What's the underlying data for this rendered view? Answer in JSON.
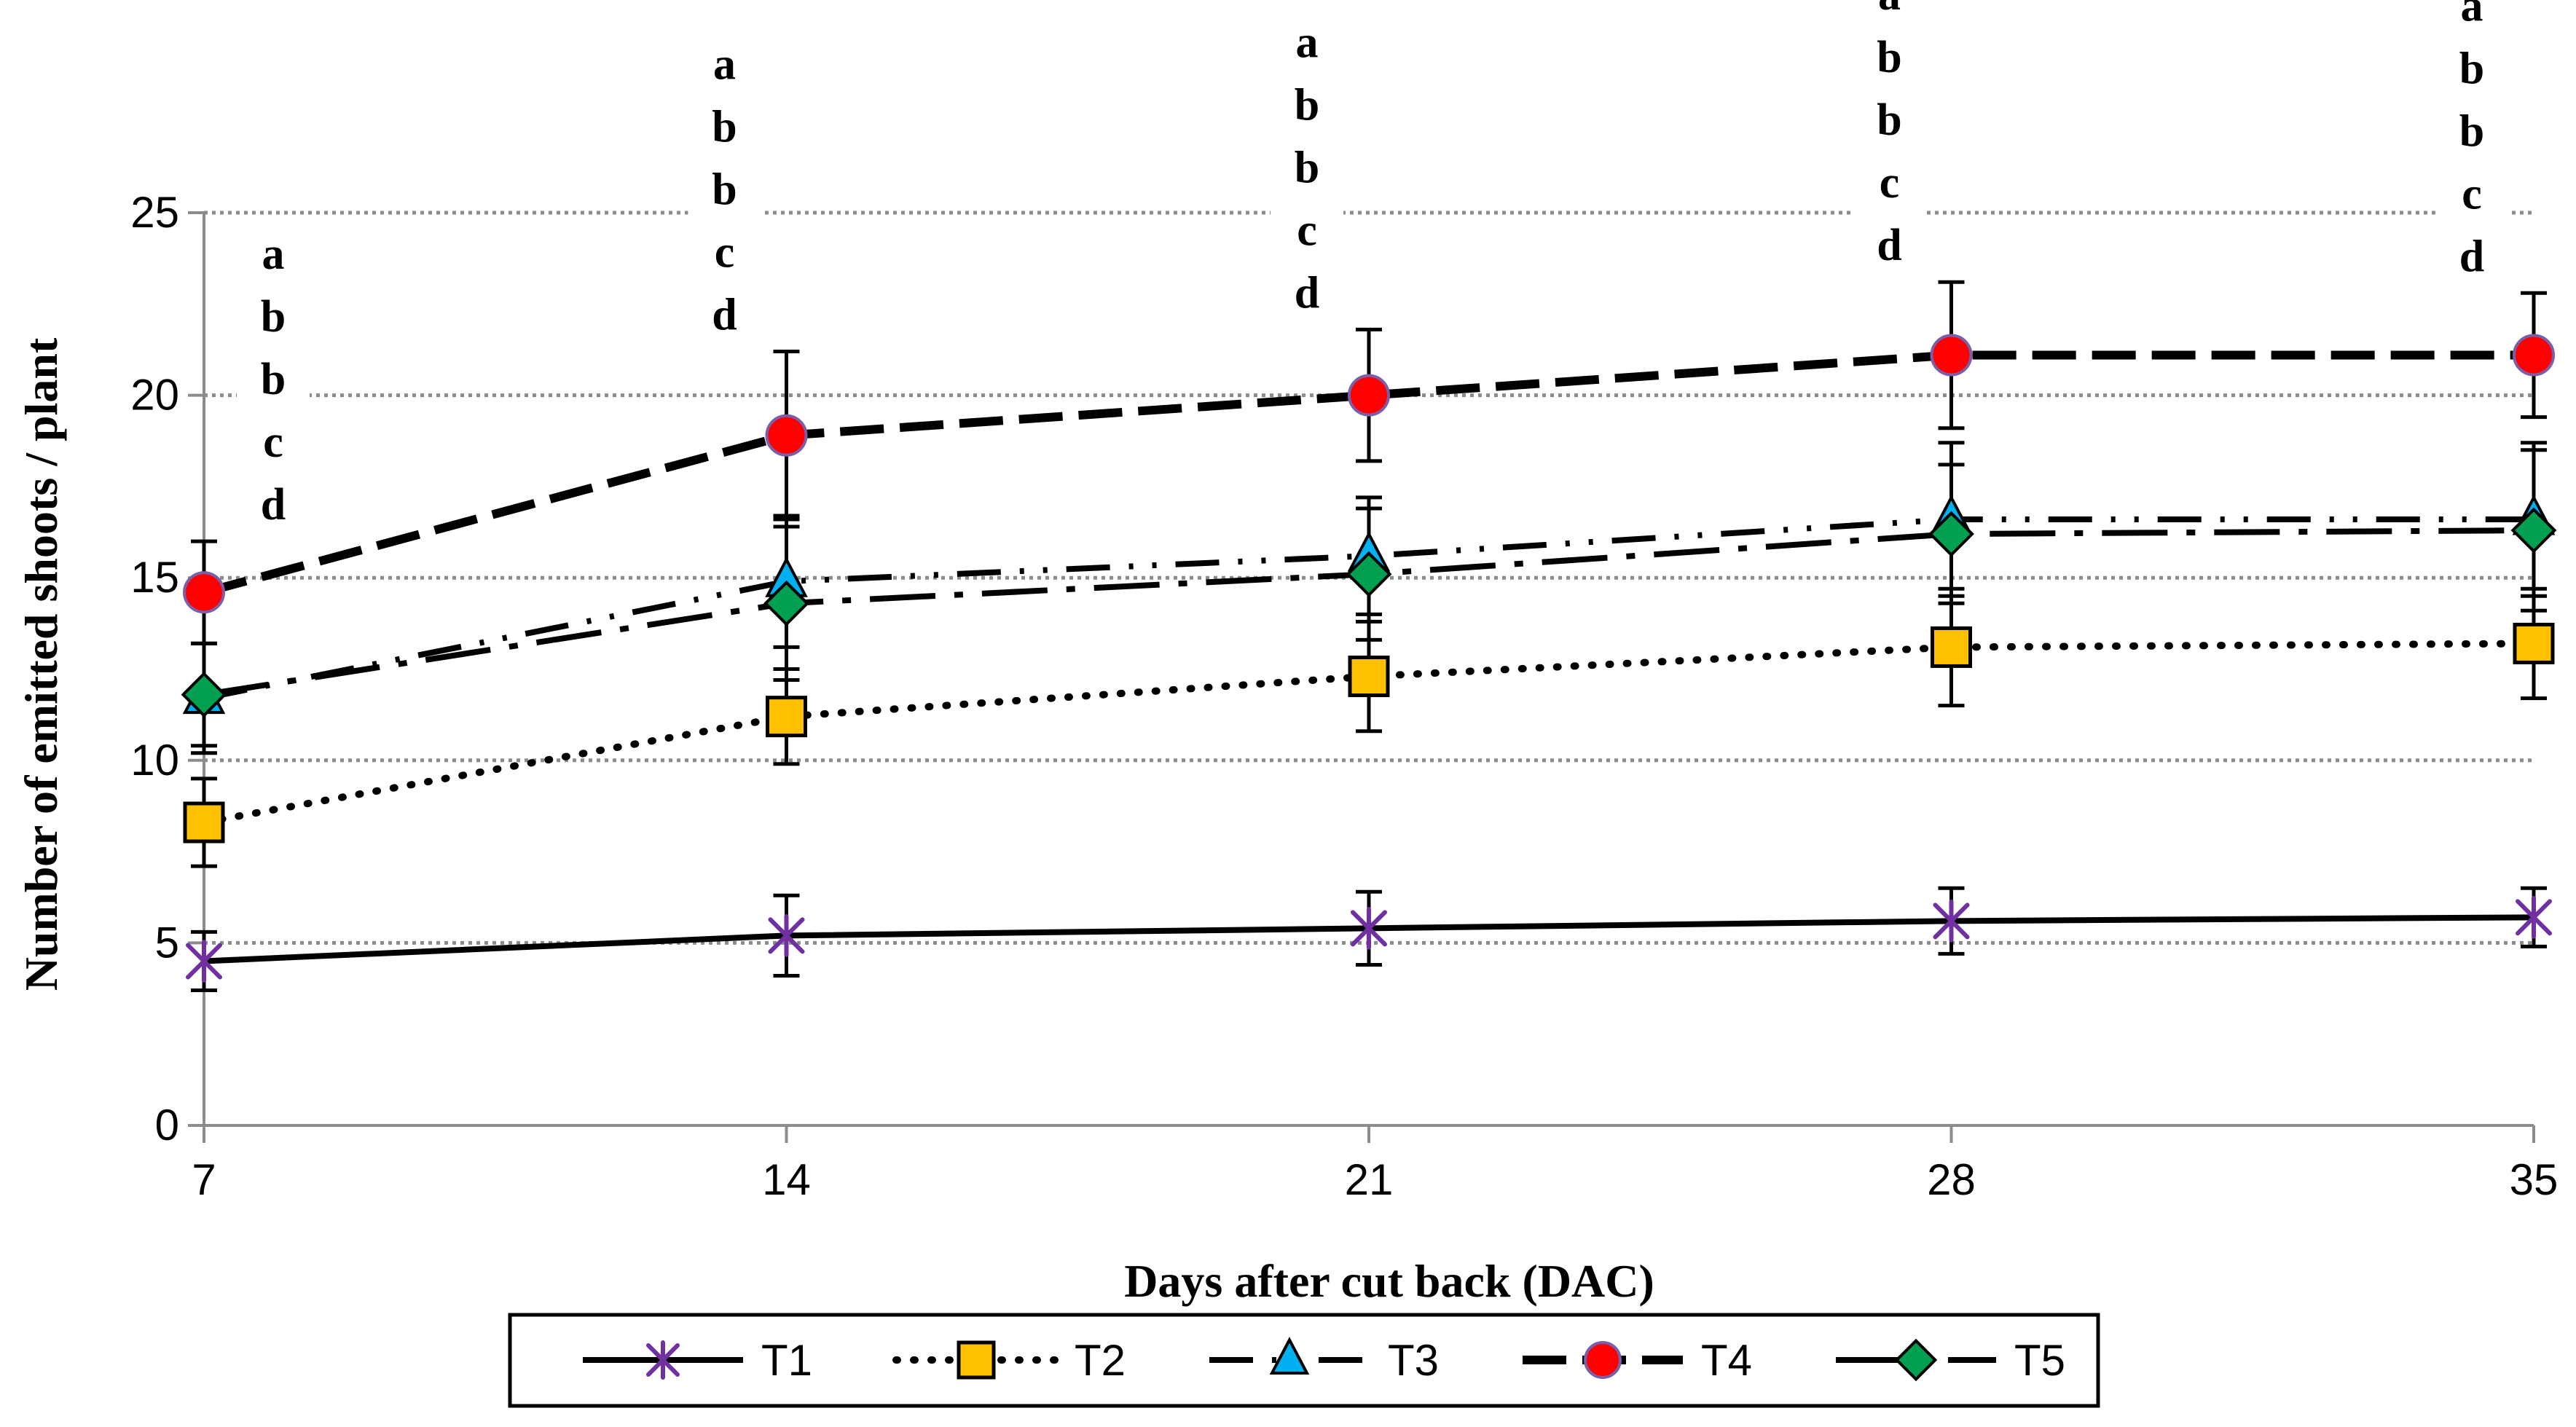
{
  "chart_data": {
    "type": "line",
    "title": "",
    "xlabel": "Days after cut back (DAC)",
    "ylabel": "Number of emitted shoots / plant",
    "x": [
      7,
      14,
      21,
      28,
      35
    ],
    "x_tick_labels": [
      "7",
      "14",
      "21",
      "28",
      "35"
    ],
    "y_ticks": [
      0,
      5,
      10,
      15,
      20,
      25
    ],
    "y_tick_labels": [
      "0",
      "5",
      "10",
      "15",
      "20",
      "25"
    ],
    "ylim": [
      0,
      25
    ],
    "grid": "horizontal dotted",
    "legend_position": "bottom",
    "series": [
      {
        "name": "T1",
        "values": [
          4.5,
          5.2,
          5.4,
          5.6,
          5.7
        ],
        "errors": [
          0.8,
          1.1,
          1.0,
          0.9,
          0.8
        ],
        "line": "solid",
        "marker": "asterisk",
        "color": "#7030A0"
      },
      {
        "name": "T2",
        "values": [
          8.3,
          11.2,
          12.3,
          13.1,
          13.2
        ],
        "errors": [
          1.2,
          1.3,
          1.5,
          1.6,
          1.5
        ],
        "line": "dotted",
        "marker": "square",
        "color": "#FFC000"
      },
      {
        "name": "T3",
        "values": [
          11.7,
          14.9,
          15.6,
          16.6,
          16.6
        ],
        "errors": [
          1.5,
          1.8,
          1.6,
          2.1,
          2.1
        ],
        "line": "dash-dot-dot",
        "marker": "triangle",
        "color": "#00B0F0"
      },
      {
        "name": "T4",
        "values": [
          14.6,
          18.9,
          20.0,
          21.1,
          21.1
        ],
        "errors": [
          1.4,
          2.3,
          1.8,
          2.0,
          1.7
        ],
        "line": "long-dash",
        "marker": "circle",
        "color": "#FF0000"
      },
      {
        "name": "T5",
        "values": [
          11.8,
          14.3,
          15.1,
          16.2,
          16.3
        ],
        "errors": [
          1.4,
          2.1,
          1.8,
          1.9,
          2.2
        ],
        "line": "long-dash-dot",
        "marker": "diamond",
        "color": "#00A050"
      }
    ],
    "annotations": [
      {
        "x": 7,
        "letters": [
          "a",
          "b",
          "b",
          "c",
          "d"
        ]
      },
      {
        "x": 14,
        "letters": [
          "a",
          "b",
          "b",
          "c",
          "d"
        ]
      },
      {
        "x": 21,
        "letters": [
          "a",
          "b",
          "b",
          "c",
          "d"
        ]
      },
      {
        "x": 28,
        "letters": [
          "a",
          "b",
          "b",
          "c",
          "d"
        ]
      },
      {
        "x": 35,
        "letters": [
          "a",
          "b",
          "b",
          "c",
          "d"
        ]
      }
    ]
  }
}
